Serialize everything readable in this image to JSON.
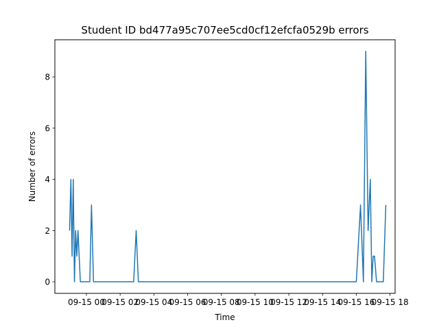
{
  "chart_data": {
    "type": "line",
    "title": "Student ID bd477a95c707ee5cd0cf12efcfa0529b errors",
    "xlabel": "Time",
    "ylabel": "Number of errors",
    "x_tick_labels": [
      "09-15 00",
      "09-15 02",
      "09-15 04",
      "09-15 06",
      "09-15 08",
      "09-15 10",
      "09-15 12",
      "09-15 14",
      "09-15 16",
      "09-15 18"
    ],
    "x_tick_hours": [
      0,
      2,
      4,
      6,
      8,
      10,
      12,
      14,
      16,
      18
    ],
    "xlim_hours": [
      -1.87,
      18.3
    ],
    "yticks": [
      0,
      2,
      4,
      6,
      8
    ],
    "ylim": [
      -0.45,
      9.45
    ],
    "grid": false,
    "series": [
      {
        "color": "#1f77b4",
        "x_hours": [
          -1.0,
          -0.92,
          -0.85,
          -0.78,
          -0.71,
          -0.64,
          -0.57,
          -0.5,
          -0.43,
          -0.36,
          -0.3,
          -0.22,
          0.2,
          0.3,
          0.42,
          2.8,
          2.95,
          3.08,
          16.0,
          16.25,
          16.42,
          16.56,
          16.7,
          16.83,
          16.92,
          17.0,
          17.08,
          17.2,
          17.45,
          17.6,
          17.75
        ],
        "values": [
          2,
          4,
          1,
          4,
          0,
          2,
          1,
          2,
          1,
          0,
          0,
          0,
          0,
          3,
          0,
          0,
          2,
          0,
          0,
          3,
          0,
          9,
          2,
          4,
          0,
          1,
          1,
          0,
          0,
          0,
          3
        ]
      }
    ]
  }
}
